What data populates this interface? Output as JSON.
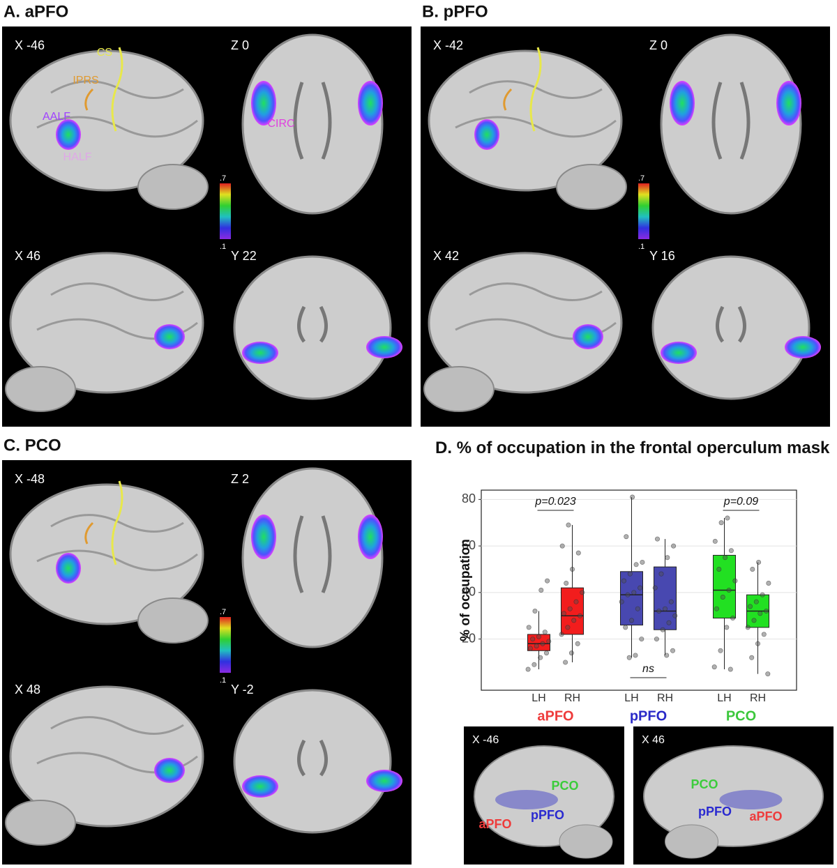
{
  "panels": [
    {
      "title": "A. aPFO",
      "slices": [
        "X -46",
        "Z 0",
        "X 46",
        "Y 22"
      ],
      "colorbar": [
        ".7",
        ".1"
      ],
      "annotations": [
        {
          "text": "CS",
          "color": "#e8e84a"
        },
        {
          "text": "IPRS",
          "color": "#e09a30"
        },
        {
          "text": "AALF",
          "color": "#a040ff"
        },
        {
          "text": "HALF",
          "color": "#e0a8e8"
        },
        {
          "text": "CIRC",
          "color": "#e040e0"
        }
      ]
    },
    {
      "title": "B. pPFO",
      "slices": [
        "X -42",
        "Z 0",
        "X 42",
        "Y 16"
      ],
      "colorbar": [
        ".7",
        ".1"
      ],
      "annotations": []
    },
    {
      "title": "C. PCO",
      "slices": [
        "X -48",
        "Z 2",
        "X 48",
        "Y -2"
      ],
      "colorbar": [
        ".7",
        ".1"
      ],
      "annotations": []
    }
  ],
  "chart_data": {
    "type": "box",
    "title": "D. % of occupation in the frontal operculum mask",
    "y_label": "% of occupation",
    "ylim": [
      -2,
      84
    ],
    "yticks": [
      20,
      40,
      60,
      80
    ],
    "grid": true,
    "groups": [
      {
        "name": "aPFO",
        "color": "#f21d1d",
        "label_color": "#ee3b3b",
        "boxes": [
          {
            "label": "LH",
            "min": 7,
            "q1": 15,
            "median": 18,
            "q3": 22,
            "max": 32,
            "points": [
              7,
              9,
              12,
              14,
              16,
              17,
              18,
              19,
              20,
              21,
              23,
              25,
              32,
              41,
              45
            ]
          },
          {
            "label": "RH",
            "min": 10,
            "q1": 22,
            "median": 30,
            "q3": 42,
            "max": 69,
            "points": [
              10,
              14,
              18,
              22,
              25,
              28,
              30,
              31,
              33,
              36,
              40,
              44,
              50,
              57,
              60,
              69
            ]
          }
        ]
      },
      {
        "name": "pPFO",
        "color": "#4848b0",
        "label_color": "#2a2ac8",
        "boxes": [
          {
            "label": "LH",
            "min": 12,
            "q1": 26,
            "median": 39,
            "q3": 49,
            "max": 81,
            "points": [
              12,
              13,
              20,
              25,
              28,
              33,
              36,
              39,
              40,
              42,
              45,
              48,
              52,
              53,
              64,
              81
            ]
          },
          {
            "label": "RH",
            "min": 13,
            "q1": 24,
            "median": 32,
            "q3": 51,
            "max": 63,
            "points": [
              13,
              15,
              20,
              24,
              27,
              30,
              32,
              33,
              36,
              42,
              48,
              55,
              60,
              63
            ]
          }
        ]
      },
      {
        "name": "PCO",
        "color": "#22e022",
        "label_color": "#3cc83c",
        "boxes": [
          {
            "label": "LH",
            "min": 7,
            "q1": 29,
            "median": 41,
            "q3": 56,
            "max": 72,
            "points": [
              7,
              8,
              15,
              25,
              29,
              33,
              38,
              41,
              45,
              50,
              55,
              58,
              62,
              70,
              72
            ]
          },
          {
            "label": "RH",
            "min": 5,
            "q1": 25,
            "median": 32,
            "q3": 39,
            "max": 53,
            "points": [
              5,
              12,
              18,
              22,
              25,
              28,
              31,
              32,
              34,
              36,
              39,
              44,
              50,
              53
            ]
          }
        ]
      }
    ],
    "annotations": [
      {
        "text": "p=0.023",
        "group": 0
      },
      {
        "text": "ns",
        "group": 1
      },
      {
        "text": "p=0.09",
        "group": 2
      }
    ]
  },
  "insets": [
    {
      "slice": "X -46",
      "labels": [
        {
          "text": "PCO",
          "color": "#3ccc3c"
        },
        {
          "text": "pPFO",
          "color": "#2a2ad0"
        },
        {
          "text": "aPFO",
          "color": "#ee3b3b"
        }
      ]
    },
    {
      "slice": "X 46",
      "labels": [
        {
          "text": "PCO",
          "color": "#3ccc3c"
        },
        {
          "text": "pPFO",
          "color": "#2a2ad0"
        },
        {
          "text": "aPFO",
          "color": "#ee3b3b"
        }
      ]
    }
  ]
}
